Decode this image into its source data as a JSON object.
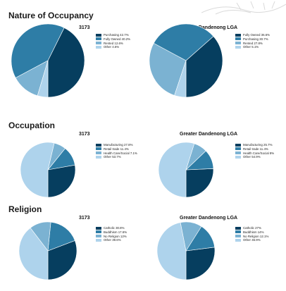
{
  "sections": [
    {
      "title": "Nature of Occupancy",
      "charts": [
        {
          "title": "3173",
          "legend": [
            "Purchasing 42.7%",
            "Fully Owned 40.2%",
            "Rented 12.6%",
            "Other 4.6%"
          ]
        },
        {
          "title": "Greater Dandenong LGA",
          "legend": [
            "Fully Owned 36.6%",
            "Purchasing 30.7%",
            "Rented 27.8%",
            "Other 5.1%"
          ]
        }
      ]
    },
    {
      "title": "Occupation",
      "charts": [
        {
          "title": "3173",
          "legend": [
            "Manufacturing 27.8%",
            "Retail trade 11.4%",
            "Health Care/Social 7.1%",
            "Other 53.7%"
          ]
        },
        {
          "title": "Greater Dandenong LGA",
          "legend": [
            "Manufacturing 25.7%",
            "Retail trade 11.4%",
            "Health Care/Social 8%",
            "Other 54.9%"
          ]
        }
      ]
    },
    {
      "title": "Religion",
      "charts": [
        {
          "title": "3173",
          "legend": [
            "Catholic 30.8%",
            "Buddhism 17.6%",
            "No Religion 12%",
            "Other 39.6%"
          ]
        },
        {
          "title": "Greater Dandenong LGA",
          "legend": [
            "Catholic 27%",
            "Buddhism 14%",
            "No Religion 12.1%",
            "Other 46.9%"
          ]
        }
      ]
    }
  ],
  "colors": [
    "#063e5f",
    "#2e7da6",
    "#7bb2d2",
    "#aed3ec"
  ],
  "chart_data": [
    {
      "type": "pie",
      "title": "3173",
      "categories": [
        "Purchasing",
        "Fully Owned",
        "Rented",
        "Other"
      ],
      "values": [
        42.7,
        40.2,
        12.6,
        4.6
      ]
    },
    {
      "type": "pie",
      "title": "Greater Dandenong LGA",
      "categories": [
        "Fully Owned",
        "Purchasing",
        "Rented",
        "Other"
      ],
      "values": [
        36.6,
        30.7,
        27.8,
        5.1
      ]
    },
    {
      "type": "pie",
      "title": "3173",
      "categories": [
        "Manufacturing",
        "Retail trade",
        "Health Care/Social",
        "Other"
      ],
      "values": [
        27.8,
        11.4,
        7.1,
        53.7
      ]
    },
    {
      "type": "pie",
      "title": "Greater Dandenong LGA",
      "categories": [
        "Manufacturing",
        "Retail trade",
        "Health Care/Social",
        "Other"
      ],
      "values": [
        25.7,
        11.4,
        8,
        54.9
      ]
    },
    {
      "type": "pie",
      "title": "3173",
      "categories": [
        "Catholic",
        "Buddhism",
        "No Religion",
        "Other"
      ],
      "values": [
        30.8,
        17.6,
        12,
        39.6
      ]
    },
    {
      "type": "pie",
      "title": "Greater Dandenong LGA",
      "categories": [
        "Catholic",
        "Buddhism",
        "No Religion",
        "Other"
      ],
      "values": [
        27,
        14,
        12.1,
        46.9
      ]
    }
  ]
}
